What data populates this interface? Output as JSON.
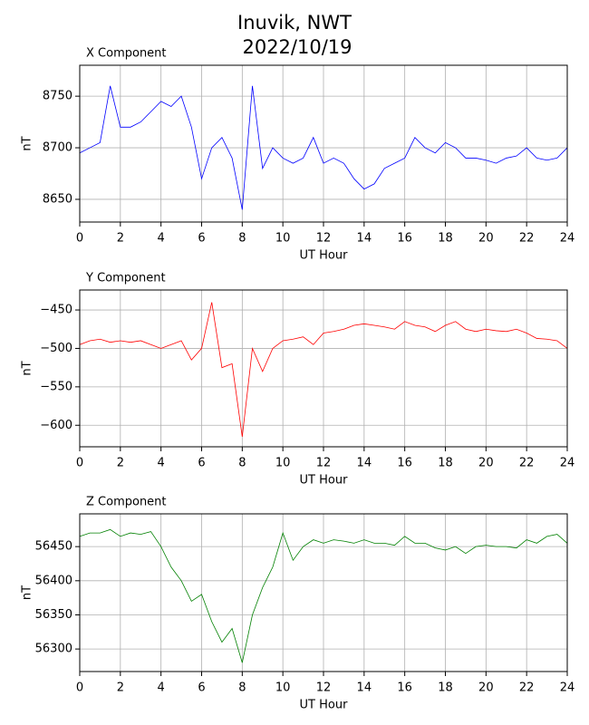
{
  "title": [
    "Inuvik, NWT",
    "2022/10/19"
  ],
  "chart_data": [
    {
      "type": "line",
      "title": "X Component",
      "xlabel": "UT Hour",
      "ylabel": "nT",
      "grid": true,
      "xlim": [
        0,
        24
      ],
      "xticks": [
        0,
        2,
        4,
        6,
        8,
        10,
        12,
        14,
        16,
        18,
        20,
        22,
        24
      ],
      "ylim": [
        8628,
        8780
      ],
      "yticks": [
        8650,
        8700,
        8750
      ],
      "x": [
        0,
        0.5,
        1,
        1.5,
        2,
        2.5,
        3,
        3.5,
        4,
        4.5,
        5,
        5.5,
        6,
        6.5,
        7,
        7.5,
        8,
        8.5,
        9,
        9.5,
        10,
        10.5,
        11,
        11.5,
        12,
        12.5,
        13,
        13.5,
        14,
        14.5,
        15,
        15.5,
        16,
        16.5,
        17,
        17.5,
        18,
        18.5,
        19,
        19.5,
        20,
        20.5,
        21,
        21.5,
        22,
        22.5,
        23,
        23.5,
        24
      ],
      "series": [
        {
          "color": "#0000ff",
          "values": [
            8695,
            8700,
            8705,
            8760,
            8720,
            8720,
            8725,
            8735,
            8745,
            8740,
            8750,
            8720,
            8670,
            8700,
            8710,
            8690,
            8640,
            8760,
            8680,
            8700,
            8690,
            8685,
            8690,
            8710,
            8685,
            8690,
            8685,
            8670,
            8660,
            8665,
            8680,
            8685,
            8690,
            8710,
            8700,
            8695,
            8705,
            8700,
            8690,
            8690,
            8688,
            8685,
            8690,
            8692,
            8700,
            8690,
            8688,
            8690,
            8700
          ]
        }
      ]
    },
    {
      "type": "line",
      "title": "Y Component",
      "xlabel": "UT Hour",
      "ylabel": "nT",
      "grid": true,
      "xlim": [
        0,
        24
      ],
      "xticks": [
        0,
        2,
        4,
        6,
        8,
        10,
        12,
        14,
        16,
        18,
        20,
        22,
        24
      ],
      "ylim": [
        -628,
        -424
      ],
      "yticks": [
        {
          "value": -450,
          "label": "−450"
        },
        {
          "value": -500,
          "label": "−500"
        },
        {
          "value": -550,
          "label": "−550"
        },
        {
          "value": -600,
          "label": "−600"
        }
      ],
      "x": [
        0,
        0.5,
        1,
        1.5,
        2,
        2.5,
        3,
        3.5,
        4,
        4.5,
        5,
        5.5,
        6,
        6.5,
        7,
        7.5,
        8,
        8.5,
        9,
        9.5,
        10,
        10.5,
        11,
        11.5,
        12,
        12.5,
        13,
        13.5,
        14,
        14.5,
        15,
        15.5,
        16,
        16.5,
        17,
        17.5,
        18,
        18.5,
        19,
        19.5,
        20,
        20.5,
        21,
        21.5,
        22,
        22.5,
        23,
        23.5,
        24
      ],
      "series": [
        {
          "color": "#ff0000",
          "values": [
            -495,
            -490,
            -488,
            -492,
            -490,
            -492,
            -490,
            -495,
            -500,
            -495,
            -490,
            -515,
            -500,
            -440,
            -525,
            -520,
            -615,
            -500,
            -530,
            -500,
            -490,
            -488,
            -485,
            -495,
            -480,
            -478,
            -475,
            -470,
            -468,
            -470,
            -472,
            -475,
            -465,
            -470,
            -472,
            -478,
            -470,
            -465,
            -475,
            -478,
            -475,
            -477,
            -478,
            -475,
            -480,
            -487,
            -488,
            -490,
            -500
          ]
        }
      ]
    },
    {
      "type": "line",
      "title": "Z Component",
      "xlabel": "UT Hour",
      "ylabel": "nT",
      "grid": true,
      "xlim": [
        0,
        24
      ],
      "xticks": [
        0,
        2,
        4,
        6,
        8,
        10,
        12,
        14,
        16,
        18,
        20,
        22,
        24
      ],
      "ylim": [
        56267,
        56498
      ],
      "yticks": [
        56300,
        56350,
        56400,
        56450
      ],
      "x": [
        0,
        0.5,
        1,
        1.5,
        2,
        2.5,
        3,
        3.5,
        4,
        4.5,
        5,
        5.5,
        6,
        6.5,
        7,
        7.5,
        8,
        8.5,
        9,
        9.5,
        10,
        10.5,
        11,
        11.5,
        12,
        12.5,
        13,
        13.5,
        14,
        14.5,
        15,
        15.5,
        16,
        16.5,
        17,
        17.5,
        18,
        18.5,
        19,
        19.5,
        20,
        20.5,
        21,
        21.5,
        22,
        22.5,
        23,
        23.5,
        24
      ],
      "series": [
        {
          "color": "#008000",
          "values": [
            56465,
            56470,
            56470,
            56475,
            56465,
            56470,
            56468,
            56472,
            56450,
            56420,
            56400,
            56370,
            56380,
            56340,
            56310,
            56330,
            56280,
            56350,
            56390,
            56420,
            56470,
            56430,
            56450,
            56460,
            56455,
            56460,
            56458,
            56455,
            56460,
            56455,
            56455,
            56452,
            56465,
            56455,
            56455,
            56448,
            56445,
            56450,
            56440,
            56450,
            56452,
            56450,
            56450,
            56448,
            56460,
            56455,
            56465,
            56468,
            56455
          ]
        }
      ]
    }
  ]
}
